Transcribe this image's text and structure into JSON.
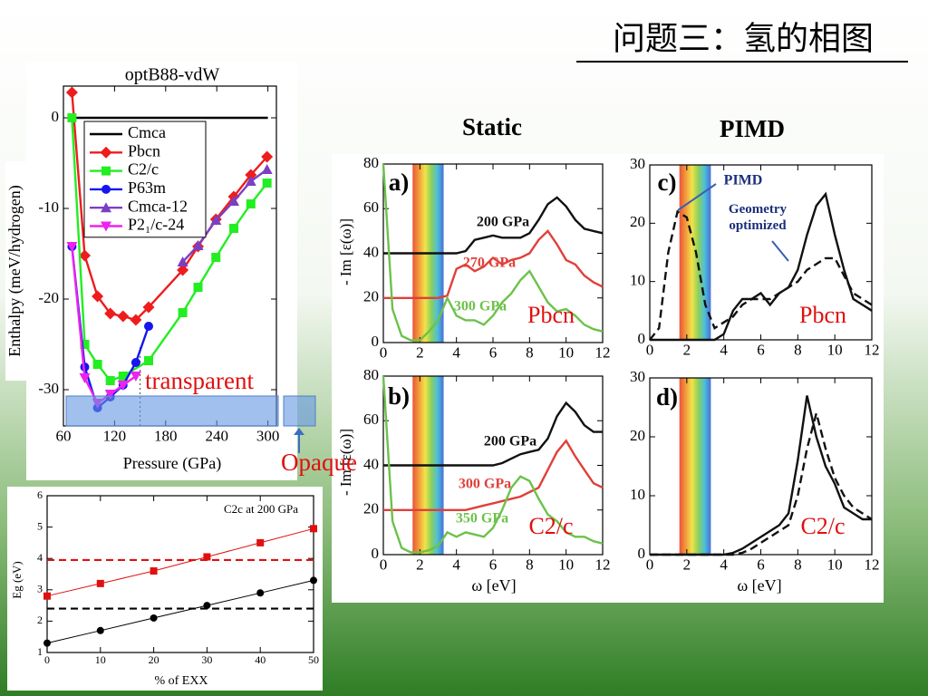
{
  "title": "问题三：氢的相图",
  "column_titles": [
    "Static",
    "PIMD"
  ],
  "annotations": [
    "transparent",
    "Opaque"
  ],
  "chart_data": [
    {
      "type": "line",
      "title": "optB88-vdW",
      "xlabel": "Pressure (GPa)",
      "ylabel": "Enthalpy (meV/hydrogen)",
      "xlim": [
        60,
        310
      ],
      "ylim": [
        -34,
        3.5
      ],
      "xticks": [
        60,
        120,
        180,
        240,
        300
      ],
      "yticks": [
        0,
        -10,
        -20,
        -30
      ],
      "vline": 150,
      "legend": "upper right",
      "series": [
        {
          "name": "Cmca",
          "color": "#000000",
          "marker": "none",
          "x": [
            70,
            300
          ],
          "values": [
            0,
            0
          ]
        },
        {
          "name": "Pbcn",
          "color": "#ee1c1c",
          "marker": "diamond",
          "x": [
            70,
            85,
            100,
            115,
            130,
            145,
            160,
            200,
            218,
            239,
            260,
            280,
            299
          ],
          "values": [
            2.8,
            -15.2,
            -19.7,
            -21.6,
            -21.9,
            -22.3,
            -20.9,
            -16.8,
            -14.2,
            -11.2,
            -8.7,
            -6.3,
            -4.3
          ]
        },
        {
          "name": "C2/c",
          "color": "#22ee22",
          "marker": "square",
          "x": [
            70,
            85,
            100,
            115,
            130,
            160,
            200,
            218,
            239,
            260,
            280,
            299
          ],
          "values": [
            0,
            -25,
            -27.2,
            -29,
            -28.5,
            -26.8,
            -21.5,
            -18.7,
            -15.4,
            -12.2,
            -9.5,
            -7.2
          ]
        },
        {
          "name": "P63m",
          "color": "#1515ee",
          "marker": "circle",
          "x": [
            70,
            85,
            100,
            115,
            130,
            145,
            160
          ],
          "values": [
            -14.2,
            -27.5,
            -32,
            -30.8,
            -29.5,
            -27,
            -23
          ]
        },
        {
          "name": "Cmca-12",
          "color": "#7b3fc4",
          "marker": "triangle",
          "x": [
            200,
            218,
            239,
            260,
            280,
            299
          ],
          "values": [
            -15.9,
            -14.1,
            -11.3,
            -9.2,
            -7,
            -5.7
          ]
        },
        {
          "name": "P2₁/c-24",
          "color": "#ee22ee",
          "marker": "triangle-down",
          "x": [
            70,
            85,
            100,
            115,
            130,
            145
          ],
          "values": [
            -14.2,
            -28.7,
            -31.5,
            -30.5,
            -29.5,
            -28.5
          ]
        }
      ]
    },
    {
      "type": "line",
      "title": "C2c at 200 GPa",
      "xlabel": "% of EXX",
      "ylabel": "Eg (eV)",
      "xlim": [
        0,
        50
      ],
      "ylim": [
        1,
        6
      ],
      "xticks": [
        0,
        10,
        20,
        30,
        40,
        50
      ],
      "yticks": [
        1,
        2,
        3,
        4,
        5,
        6
      ],
      "x": [
        0,
        10,
        20,
        30,
        40,
        50
      ],
      "reference_lines": [
        {
          "value": 3.95,
          "color": "#e01010"
        },
        {
          "value": 2.4,
          "color": "#000000"
        }
      ],
      "series": [
        {
          "color": "#e01010",
          "marker": "square",
          "values": [
            2.8,
            3.2,
            3.6,
            4.05,
            4.5,
            4.95
          ]
        },
        {
          "color": "#000000",
          "marker": "circle",
          "values": [
            1.3,
            1.7,
            2.1,
            2.5,
            2.9,
            3.3
          ]
        }
      ]
    },
    {
      "type": "line",
      "label": "a)",
      "phase": "Pbcn",
      "ylabel": "- Im [ε(ω)]",
      "xlim": [
        0,
        12
      ],
      "ylim": [
        0,
        80
      ],
      "xticks": [
        0,
        2,
        4,
        6,
        8,
        10,
        12
      ],
      "yticks": [
        0,
        20,
        40,
        60,
        80
      ],
      "spectrum_band": [
        1.6,
        3.3
      ],
      "x": [
        0,
        0.5,
        1,
        1.5,
        2,
        2.5,
        3,
        3.5,
        4,
        4.5,
        5,
        5.5,
        6,
        6.5,
        7,
        7.5,
        8,
        8.5,
        9,
        9.5,
        10,
        10.5,
        11,
        11.5,
        12
      ],
      "series": [
        {
          "name": "200 GPa",
          "color": "#111111",
          "values": [
            40,
            40,
            40,
            40,
            40,
            40,
            40,
            40,
            40,
            41,
            46,
            47,
            48,
            47,
            47,
            47,
            49,
            55,
            62,
            65,
            61,
            55,
            51,
            50,
            49
          ]
        },
        {
          "name": "270 GPa",
          "color": "#e0403a",
          "values": [
            20,
            20,
            20,
            20,
            20,
            20,
            20,
            21,
            33,
            35,
            32,
            34,
            38,
            35,
            37,
            38,
            40,
            46,
            50,
            44,
            37,
            35,
            30,
            27,
            25
          ]
        },
        {
          "name": "300 GPa",
          "color": "#6cc24a",
          "values": [
            80,
            15,
            3,
            1,
            1,
            5,
            10,
            20,
            12,
            10,
            10,
            8,
            12,
            18,
            22,
            28,
            32,
            25,
            18,
            14,
            15,
            12,
            8,
            6,
            5
          ]
        }
      ]
    },
    {
      "type": "line",
      "label": "b)",
      "phase": "C2/c",
      "xlabel": "ω [eV]",
      "ylabel": "- Im [ε(ω)]",
      "xlim": [
        0,
        12
      ],
      "ylim": [
        0,
        80
      ],
      "xticks": [
        0,
        2,
        4,
        6,
        8,
        10,
        12
      ],
      "yticks": [
        0,
        20,
        40,
        60,
        80
      ],
      "spectrum_band": [
        1.6,
        3.3
      ],
      "x": [
        0,
        0.5,
        1,
        1.5,
        2,
        2.5,
        3,
        3.5,
        4,
        4.5,
        5,
        5.5,
        6,
        6.5,
        7,
        7.5,
        8,
        8.5,
        9,
        9.5,
        10,
        10.5,
        11,
        11.5,
        12
      ],
      "series": [
        {
          "name": "200 GPa",
          "color": "#111111",
          "values": [
            40,
            40,
            40,
            40,
            40,
            40,
            40,
            40,
            40,
            40,
            40,
            40,
            40,
            41,
            43,
            45,
            46,
            47,
            52,
            62,
            68,
            64,
            58,
            55,
            55
          ]
        },
        {
          "name": "300 GPa",
          "color": "#e0403a",
          "values": [
            20,
            20,
            20,
            20,
            20,
            20,
            20,
            20,
            20,
            20,
            21,
            22,
            23,
            24,
            25,
            26,
            28,
            30,
            38,
            46,
            51,
            44,
            38,
            32,
            30
          ]
        },
        {
          "name": "350 GPa",
          "color": "#6cc24a",
          "values": [
            80,
            15,
            3,
            1,
            1,
            2,
            4,
            10,
            8,
            10,
            9,
            8,
            12,
            20,
            30,
            35,
            33,
            25,
            18,
            15,
            10,
            8,
            8,
            6,
            5
          ]
        }
      ]
    },
    {
      "type": "line",
      "label": "c)",
      "phase": "Pbcn",
      "xlim": [
        0,
        12
      ],
      "ylim": [
        0,
        30
      ],
      "xticks": [
        0,
        2,
        4,
        6,
        8,
        10,
        12
      ],
      "yticks": [
        0,
        10,
        20,
        30
      ],
      "spectrum_band": [
        1.6,
        3.3
      ],
      "x": [
        0,
        0.5,
        1,
        1.5,
        2,
        2.5,
        3,
        3.5,
        4,
        4.5,
        5,
        5.5,
        6,
        6.5,
        7,
        7.5,
        8,
        8.5,
        9,
        9.5,
        10,
        10.5,
        11,
        11.5,
        12
      ],
      "series": [
        {
          "name": "PIMD",
          "color": "#111111",
          "dash": true,
          "values": [
            0,
            2,
            15,
            22,
            21,
            15,
            6,
            2,
            3,
            4,
            6,
            7,
            7,
            7,
            8,
            9,
            10,
            12,
            13,
            14,
            14,
            11,
            8,
            7,
            6
          ]
        },
        {
          "name": "Geometry optimized",
          "color": "#111111",
          "values": [
            0,
            0,
            0,
            0,
            0,
            0,
            0,
            0,
            1,
            5,
            7,
            7,
            8,
            6,
            8,
            9,
            12,
            18,
            23,
            25,
            18,
            12,
            7,
            6,
            5
          ]
        }
      ]
    },
    {
      "type": "line",
      "label": "d)",
      "phase": "C2/c",
      "xlabel": "ω [eV]",
      "xlim": [
        0,
        12
      ],
      "ylim": [
        0,
        30
      ],
      "xticks": [
        0,
        2,
        4,
        6,
        8,
        10,
        12
      ],
      "yticks": [
        0,
        10,
        20,
        30
      ],
      "spectrum_band": [
        1.6,
        3.3
      ],
      "x": [
        0,
        0.5,
        1,
        1.5,
        2,
        2.5,
        3,
        3.5,
        4,
        4.5,
        5,
        5.5,
        6,
        6.5,
        7,
        7.5,
        8,
        8.5,
        9,
        9.5,
        10,
        10.5,
        11,
        11.5,
        12
      ],
      "series": [
        {
          "color": "#111111",
          "values": [
            0,
            0,
            0,
            0,
            0,
            0,
            0,
            0,
            0,
            0.3,
            1,
            2,
            3,
            4,
            5,
            7,
            16,
            27,
            20,
            15,
            12,
            8,
            7,
            6,
            6
          ]
        },
        {
          "color": "#111111",
          "dash": true,
          "values": [
            0,
            0,
            0,
            0,
            0,
            0,
            0,
            0,
            0,
            0,
            0.3,
            1,
            2,
            3,
            4,
            5,
            10,
            18,
            24,
            18,
            13,
            10,
            8,
            7,
            6
          ]
        }
      ]
    }
  ]
}
